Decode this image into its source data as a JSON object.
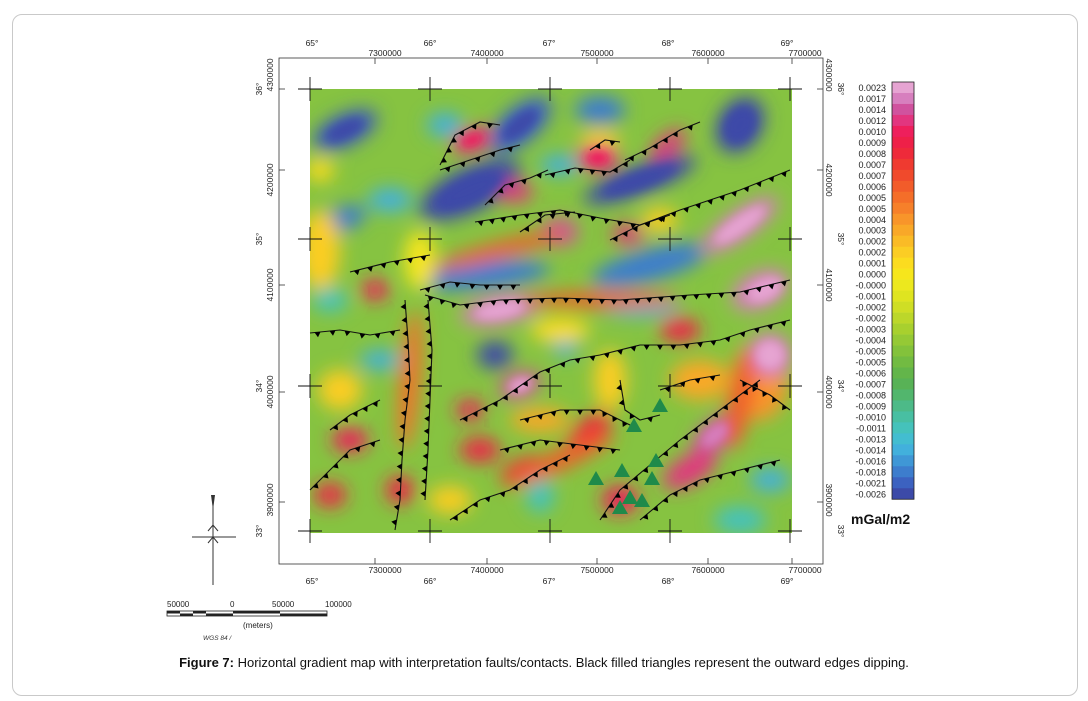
{
  "figure": {
    "label": "Figure 7:",
    "text": " Horizontal gradient map with interpretation faults/contacts. Black filled triangles represent the outward edges dipping."
  },
  "map": {
    "lon_labels": [
      "65°",
      "66°",
      "67°",
      "68°",
      "69°"
    ],
    "easting_labels": [
      "7300000",
      "7400000",
      "7500000",
      "7600000",
      "7700000"
    ],
    "lat_labels": [
      "36°",
      "35°",
      "34°",
      "33°"
    ],
    "northing_labels": [
      "4300000",
      "4200000",
      "4100000",
      "4000000",
      "3900000"
    ]
  },
  "legend": {
    "unit": "mGal/m2",
    "values": [
      "0.0023",
      "0.0017",
      "0.0014",
      "0.0012",
      "0.0010",
      "0.0009",
      "0.0008",
      "0.0007",
      "0.0007",
      "0.0006",
      "0.0005",
      "0.0005",
      "0.0004",
      "0.0003",
      "0.0002",
      "0.0002",
      "0.0001",
      "0.0000",
      "-0.0000",
      "-0.0001",
      "-0.0002",
      "-0.0002",
      "-0.0003",
      "-0.0004",
      "-0.0005",
      "-0.0005",
      "-0.0006",
      "-0.0007",
      "-0.0008",
      "-0.0009",
      "-0.0010",
      "-0.0011",
      "-0.0013",
      "-0.0014",
      "-0.0016",
      "-0.0018",
      "-0.0021",
      "-0.0026"
    ],
    "colors": [
      "#e6a4d2",
      "#d77fbe",
      "#d0529e",
      "#e2357f",
      "#ee1f5c",
      "#ee2048",
      "#ee2a3a",
      "#ef3a30",
      "#f04a2c",
      "#f25c2a",
      "#f46e29",
      "#f6802a",
      "#f8952a",
      "#f9a828",
      "#fabb26",
      "#fbcd24",
      "#fbdc1f",
      "#f6e61c",
      "#ece81e",
      "#dfe420",
      "#cfde25",
      "#bcd72a",
      "#a8d02e",
      "#95c935",
      "#83c23b",
      "#72bb42",
      "#63b54a",
      "#58b256",
      "#52b66d",
      "#4dba88",
      "#48bfa2",
      "#45c2bb",
      "#43bdd0",
      "#42b0dc",
      "#3f97d6",
      "#3d7dcd",
      "#3c62c0",
      "#3c4aa8"
    ]
  },
  "scale": {
    "labels": [
      "50000",
      "0",
      "50000",
      "100000"
    ],
    "units": "(meters)",
    "projection": "WGS 84 / "
  },
  "symbols": {
    "fault_color": "#000000",
    "station_color": "#1f8a4a"
  }
}
